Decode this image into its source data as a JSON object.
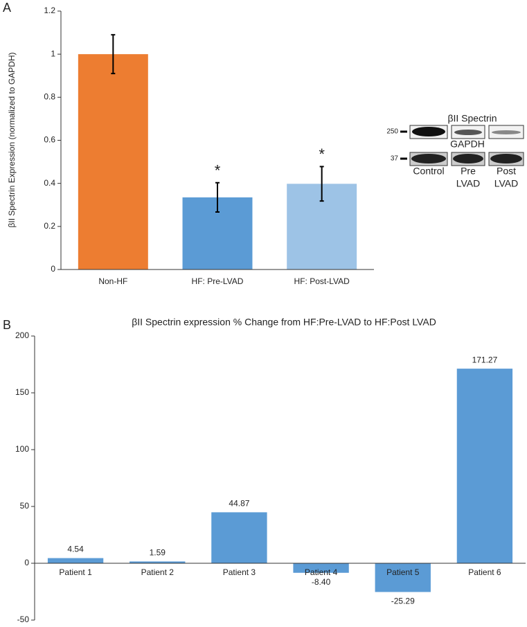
{
  "chart_data": [
    {
      "type": "bar",
      "label": "A",
      "y_label": "βII Spectrin Expression (normalized to GAPDH)",
      "categories": [
        "Non-HF",
        "HF:  Pre-LVAD",
        "HF:  Post-LVAD"
      ],
      "values": [
        1.0,
        0.335,
        0.398
      ],
      "errors": [
        0.09,
        0.068,
        0.08
      ],
      "colors": [
        "#ed7d31",
        "#5b9bd5",
        "#9dc3e6"
      ],
      "annotations": [
        null,
        "*",
        "*"
      ],
      "ylim": [
        0,
        1.2
      ],
      "yticks": [
        0,
        0.2,
        0.4,
        0.6,
        0.8,
        1,
        1.2
      ],
      "grid": false
    },
    {
      "type": "bar",
      "label": "B",
      "title": "βII Spectrin expression % Change from HF:Pre-LVAD to HF:Post LVAD",
      "categories": [
        "Patient 1",
        "Patient 2",
        "Patient 3",
        "Patient 4",
        "Patient 5",
        "Patient 6"
      ],
      "values": [
        4.54,
        1.59,
        44.87,
        -8.4,
        -25.29,
        171.27
      ],
      "value_labels": [
        "4.54",
        "1.59",
        "44.87",
        "-8.40",
        "-25.29",
        "171.27"
      ],
      "color": "#5b9bd5",
      "ylim": [
        -50,
        200
      ],
      "yticks": [
        -50,
        0,
        50,
        100,
        150,
        200
      ],
      "grid": false
    }
  ],
  "blot": {
    "title": "βII Spectrin",
    "loading_control": "GAPDH",
    "markers": [
      "250",
      "37"
    ],
    "lanes": [
      [
        "Control"
      ],
      [
        "Pre",
        "LVAD"
      ],
      [
        "Post",
        "LVAD"
      ]
    ]
  }
}
